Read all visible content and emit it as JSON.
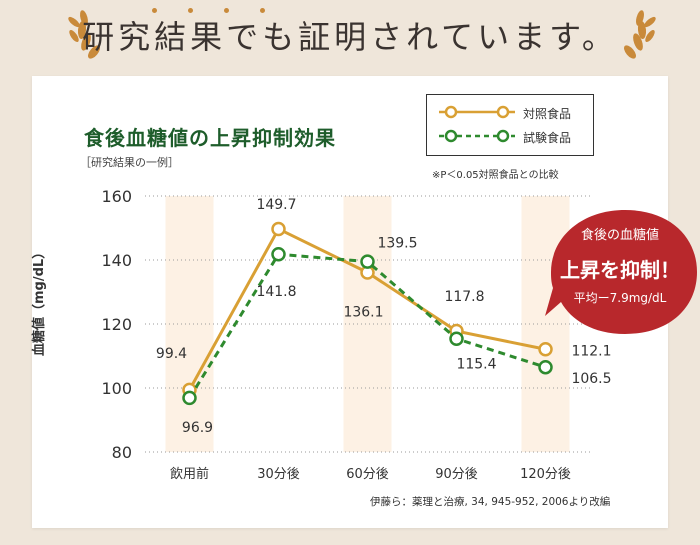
{
  "banner": {
    "title": "研究結果でも証明されています。"
  },
  "colors": {
    "control": "#d9a034",
    "test": "#2e8a2e",
    "callout": "#b8282c",
    "band": "#fdf1e4",
    "title": "#1e5d2b"
  },
  "callout": {
    "line1": "食後の血糖値",
    "line2": "上昇を抑制！",
    "line3": "平均ー7.9mg/dL"
  },
  "note": "※P＜0.05対照食品との比較",
  "source": "伊藤ら：薬理と治療, 34, 945-952, 2006より改編",
  "chart_data": {
    "type": "line",
    "title": "食後血糖値の上昇抑制効果",
    "subtitle": "［研究結果の一例］",
    "xlabel": "",
    "ylabel": "血糖値（mg/dL）",
    "categories": [
      "飲用前",
      "30分後",
      "60分後",
      "90分後",
      "120分後"
    ],
    "ylim": [
      80,
      160
    ],
    "yticks": [
      "80",
      "100",
      "120",
      "140",
      "160"
    ],
    "legend_position": "top-right",
    "series": [
      {
        "name": "対照食品",
        "style": "solid",
        "values": [
          99.4,
          149.7,
          136.1,
          117.8,
          112.1
        ],
        "labels": [
          "99.4",
          "149.7",
          "136.1",
          "117.8",
          "112.1"
        ]
      },
      {
        "name": "試験食品",
        "style": "dashed",
        "values": [
          96.9,
          141.8,
          139.5,
          115.4,
          106.5
        ],
        "labels": [
          "96.9",
          "141.8",
          "139.5",
          "115.4",
          "106.5"
        ]
      }
    ]
  }
}
